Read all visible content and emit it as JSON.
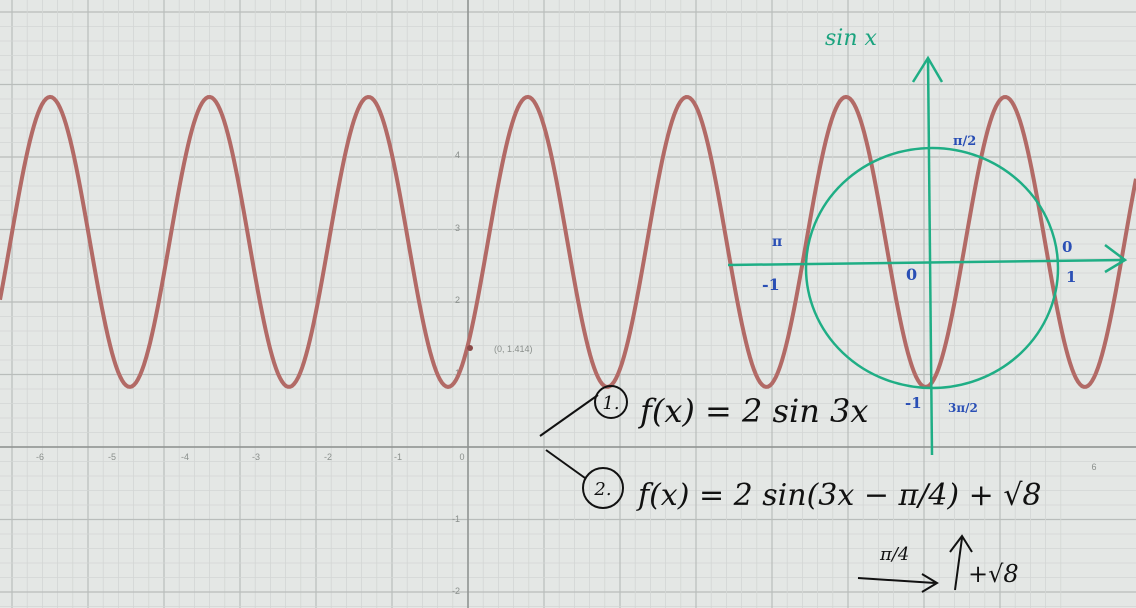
{
  "graph": {
    "point_label": "(0, 1.414)",
    "x_tick_labels": [
      "-6",
      "-5",
      "-4",
      "-3",
      "-2",
      "-1",
      "0",
      "6"
    ],
    "y_tick_labels": [
      "4",
      "3",
      "2",
      "1",
      "-1",
      "-2"
    ]
  },
  "circle_sketch": {
    "axis_label": "sin x",
    "top": "π/2",
    "left": "π",
    "left_value": "-1",
    "origin": "0",
    "right": "0",
    "right_value": "1",
    "bottom_value": "-1",
    "bottom": "3π/2"
  },
  "notes": {
    "f1_marker": "1.",
    "f1": "f(x) = 2 sin 3x",
    "f2_marker": "2.",
    "f2": "f(x) = 2 sin(3x − π/4) + √8",
    "shift_h": "π/4",
    "shift_v": "+√8"
  }
}
